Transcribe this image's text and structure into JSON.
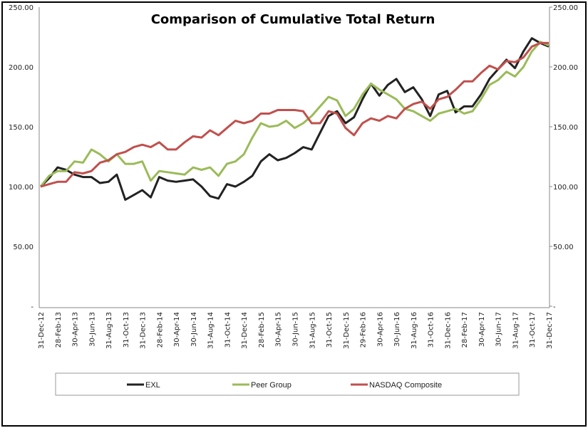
{
  "chart_data": {
    "type": "line",
    "title": "Comparison of Cumulative Total Return",
    "xlabel": "",
    "ylabel": "",
    "ylim": [
      0,
      250
    ],
    "y_ticks": [
      "-",
      "50.00",
      "100.00",
      "150.00",
      "200.00",
      "250.00"
    ],
    "y_axes": "left and right (mirrored)",
    "grid": false,
    "legend_position": "bottom",
    "x_tick_labels": [
      "31-Dec-12",
      "28-Feb-13",
      "30-Apr-13",
      "30-Jun-13",
      "31-Aug-13",
      "31-Oct-13",
      "31-Dec-13",
      "28-Feb-14",
      "30-Apr-14",
      "30-Jun-14",
      "31-Aug-14",
      "31-Oct-14",
      "31-Dec-14",
      "28-Feb-15",
      "30-Apr-15",
      "30-Jun-15",
      "31-Aug-15",
      "31-Oct-15",
      "31-Dec-15",
      "29-Feb-16",
      "30-Apr-16",
      "30-Jun-16",
      "31-Aug-16",
      "31-Oct-16",
      "31-Dec-16",
      "28-Feb-17",
      "30-Apr-17",
      "30-Jun-17",
      "31-Aug-17",
      "31-Oct-17",
      "31-Dec-17"
    ],
    "x": [
      "Dec-12",
      "Jan-13",
      "Feb-13",
      "Mar-13",
      "Apr-13",
      "May-13",
      "Jun-13",
      "Jul-13",
      "Aug-13",
      "Sep-13",
      "Oct-13",
      "Nov-13",
      "Dec-13",
      "Jan-14",
      "Feb-14",
      "Mar-14",
      "Apr-14",
      "May-14",
      "Jun-14",
      "Jul-14",
      "Aug-14",
      "Sep-14",
      "Oct-14",
      "Nov-14",
      "Dec-14",
      "Jan-15",
      "Feb-15",
      "Mar-15",
      "Apr-15",
      "May-15",
      "Jun-15",
      "Jul-15",
      "Aug-15",
      "Sep-15",
      "Oct-15",
      "Nov-15",
      "Dec-15",
      "Jan-16",
      "Feb-16",
      "Mar-16",
      "Apr-16",
      "May-16",
      "Jun-16",
      "Jul-16",
      "Aug-16",
      "Sep-16",
      "Oct-16",
      "Nov-16",
      "Dec-16",
      "Jan-17",
      "Feb-17",
      "Mar-17",
      "Apr-17",
      "May-17",
      "Jun-17",
      "Jul-17",
      "Aug-17",
      "Sep-17",
      "Oct-17",
      "Nov-17",
      "Dec-17"
    ],
    "series": [
      {
        "name": "EXL",
        "color": "#222222",
        "values": [
          100,
          107,
          116,
          114,
          110,
          108,
          108,
          103,
          104,
          110,
          89,
          93,
          97,
          91,
          108,
          105,
          104,
          105,
          106,
          100,
          92,
          90,
          102,
          100,
          104,
          109,
          121,
          127,
          122,
          124,
          128,
          133,
          131,
          145,
          159,
          163,
          153,
          158,
          173,
          186,
          176,
          185,
          190,
          179,
          183,
          173,
          159,
          177,
          180,
          162,
          167,
          167,
          177,
          190,
          198,
          206,
          199,
          213,
          224,
          220,
          217
        ]
      },
      {
        "name": "Peer Group",
        "color": "#9BBB59",
        "values": [
          100,
          109,
          113,
          113,
          121,
          120,
          131,
          127,
          121,
          127,
          119,
          119,
          121,
          105,
          113,
          112,
          111,
          110,
          116,
          114,
          116,
          109,
          119,
          121,
          127,
          141,
          153,
          150,
          151,
          155,
          149,
          153,
          159,
          167,
          175,
          172,
          159,
          165,
          177,
          186,
          181,
          177,
          173,
          165,
          163,
          159,
          155,
          161,
          163,
          165,
          161,
          163,
          173,
          185,
          189,
          196,
          192,
          200,
          213,
          221,
          218
        ]
      },
      {
        "name": "NASDAQ Composite",
        "color": "#C0504D",
        "values": [
          100,
          102,
          104,
          104,
          112,
          111,
          113,
          120,
          122,
          127,
          129,
          133,
          135,
          133,
          137,
          131,
          131,
          137,
          142,
          141,
          147,
          143,
          149,
          155,
          153,
          155,
          161,
          161,
          164,
          164,
          164,
          163,
          153,
          153,
          163,
          161,
          149,
          143,
          153,
          157,
          155,
          159,
          157,
          165,
          169,
          171,
          165,
          173,
          175,
          181,
          188,
          188,
          195,
          201,
          198,
          205,
          204,
          208,
          217,
          220,
          220
        ]
      }
    ]
  }
}
